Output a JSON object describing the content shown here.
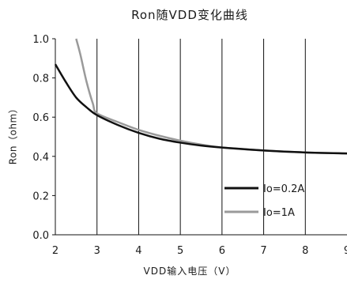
{
  "chart_data": {
    "type": "line",
    "title": "Ron随VDD变化曲线",
    "xlabel": "VDD输入电压（V）",
    "ylabel": "Ron（ohm）",
    "xlim": [
      2,
      9
    ],
    "ylim": [
      0,
      1.0
    ],
    "x_ticks": [
      "2",
      "3",
      "4",
      "5",
      "6",
      "7",
      "8",
      "9"
    ],
    "y_ticks": [
      "0.0",
      "0.2",
      "0.4",
      "0.6",
      "0.8",
      "1.0"
    ],
    "grid": "x-major",
    "legend_position": "bottom-right",
    "series": [
      {
        "name": "Io=0.2A",
        "color": "#111111",
        "x": [
          2.0,
          2.25,
          2.5,
          2.75,
          3.0,
          3.5,
          4.0,
          4.5,
          5.0,
          5.5,
          6.0,
          7.0,
          8.0,
          9.0
        ],
        "y": [
          0.87,
          0.78,
          0.7,
          0.65,
          0.61,
          0.56,
          0.52,
          0.49,
          0.47,
          0.455,
          0.445,
          0.43,
          0.42,
          0.415
        ]
      },
      {
        "name": "Io=1A",
        "color": "#9a9a9a",
        "x": [
          2.5,
          2.6,
          2.75,
          2.9,
          3.0,
          3.5,
          4.0,
          4.5,
          5.0,
          5.5,
          6.0,
          7.0,
          8.0,
          9.0
        ],
        "y": [
          1.0,
          0.92,
          0.78,
          0.67,
          0.62,
          0.575,
          0.535,
          0.505,
          0.48,
          0.46,
          0.445,
          0.43,
          0.42,
          0.415
        ]
      }
    ]
  }
}
